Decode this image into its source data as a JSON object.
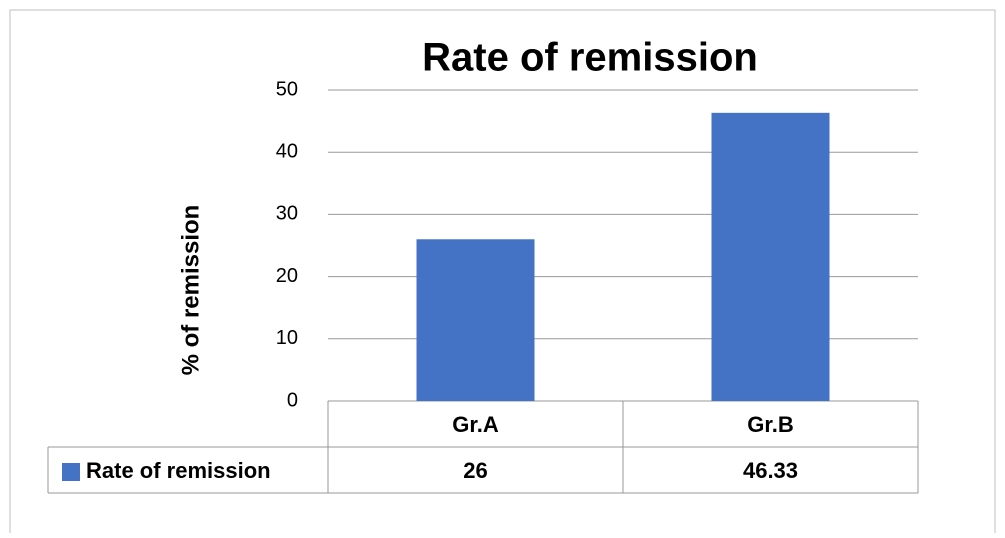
{
  "chart_data": {
    "type": "bar",
    "title": "Rate of remission",
    "y_label": "% of remission",
    "categories": [
      "Gr.A",
      "Gr.B"
    ],
    "series": [
      {
        "name": "Rate of remission",
        "color": "#4472c4",
        "values": [
          26,
          46.33
        ]
      }
    ],
    "ylim": [
      0,
      50
    ],
    "yticks": [
      0,
      10,
      20,
      30,
      40,
      50
    ],
    "grid": true,
    "data_table": true
  }
}
